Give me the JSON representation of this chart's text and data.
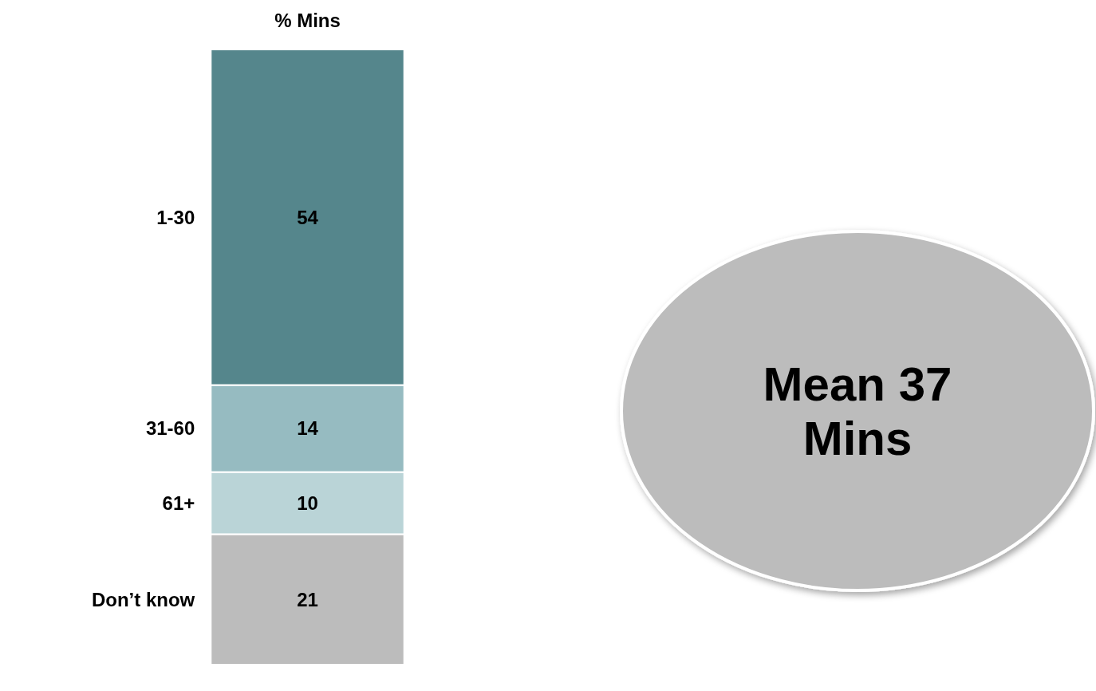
{
  "chart_data": {
    "type": "bar",
    "title": "% Mins",
    "stacked": true,
    "categories": [
      null
    ],
    "series": [
      {
        "name": "Don’t know",
        "color": "#bcbcbc",
        "values": [
          21
        ]
      },
      {
        "name": "61+",
        "color": "#bad4d7",
        "values": [
          10
        ]
      },
      {
        "name": "31-60",
        "color": "#96bbc1",
        "values": [
          14
        ]
      },
      {
        "name": "1-30",
        "color": "#55868c",
        "values": [
          54
        ]
      }
    ],
    "data_labels": true,
    "annotations": [
      "Mean 37 Mins"
    ]
  }
}
